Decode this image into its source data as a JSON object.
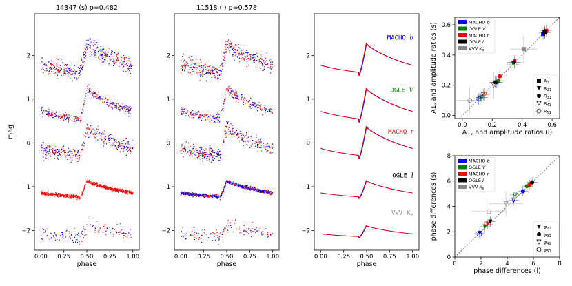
{
  "chart_data": [
    {
      "type": "scatter",
      "panel": "light curves, star 14347",
      "title": "14347 (s) p=0.482",
      "title_color": "#ff0000",
      "xlabel": "phase",
      "ylabel": "mag",
      "xlim": [
        -0.07,
        1.07
      ],
      "ylim": [
        -2.45,
        2.95
      ],
      "yaxis_inverted": false,
      "xticks": [
        "0.00",
        "0.25",
        "0.50",
        "0.75",
        "1.00"
      ],
      "yticks": [
        "2",
        "1",
        "0",
        "−1",
        "−2"
      ],
      "series_colors": [
        "#0000ff",
        "#ff0000"
      ],
      "bands_offset_mag": [
        1.85,
        0.85,
        -0.1,
        -1.05,
        -1.95
      ]
    },
    {
      "type": "scatter",
      "panel": "light curves, star 11518",
      "title": "11518 (l) p=0.578",
      "title_color": "#0000ff",
      "xlabel": "phase",
      "xlim": [
        -0.07,
        1.07
      ],
      "ylim": [
        -2.45,
        2.95
      ],
      "xticks": [
        "0.00",
        "0.25",
        "0.50",
        "0.75",
        "1.00"
      ],
      "yticks": [
        "2",
        "1",
        "0",
        "−1",
        "−2"
      ],
      "series_colors": [
        "#0000ff",
        "#ff0000"
      ]
    },
    {
      "type": "line",
      "panel": "template light curves",
      "xlabel": "phase",
      "xlim": [
        -0.07,
        1.07
      ],
      "ylim": [
        -2.45,
        2.95
      ],
      "xticks": [
        "0.00",
        "0.25",
        "0.50",
        "0.75",
        "1.00"
      ],
      "yticks": [
        "2",
        "1",
        "0",
        "−1",
        "−2"
      ],
      "series_colors": [
        "#0000ff",
        "#ff0000"
      ],
      "band_labels": [
        {
          "text": "MACHO",
          "italic": "b",
          "color": "#0000ff"
        },
        {
          "text": "OGLE",
          "italic": "V",
          "color": "#008000"
        },
        {
          "text": "MACHO",
          "italic": "r",
          "color": "#ff0000"
        },
        {
          "text": "OGLE",
          "italic": "I",
          "color": "#000000"
        },
        {
          "text": "VVV",
          "italic": "K",
          "sub": "s",
          "color": "#888888"
        }
      ]
    },
    {
      "type": "scatter",
      "panel": "amplitude ratios",
      "xlabel": "A1, and amplitude ratios (l)",
      "ylabel": "A1, and amplitude ratios (s)",
      "xlim": [
        -0.05,
        0.65
      ],
      "ylim": [
        -0.02,
        0.65
      ],
      "xticks": [
        "0.0",
        "0.2",
        "0.4",
        "0.6"
      ],
      "yticks": [
        "0.0",
        "0.2",
        "0.4",
        "0.6"
      ],
      "legend_bands": [
        {
          "label": "MACHO b",
          "color": "#0000ff"
        },
        {
          "label": "OGLE V",
          "color": "#008000"
        },
        {
          "label": "MACHO r",
          "color": "#ff0000"
        },
        {
          "label": "OGLE I",
          "color": "#000000"
        },
        {
          "label": "VVV Ks",
          "color": "#888888"
        }
      ],
      "legend_markers": [
        "A1",
        "R21",
        "R31",
        "R41",
        "R51"
      ],
      "points": [
        {
          "marker": "A1",
          "band": 0,
          "x": 0.54,
          "y": 0.54
        },
        {
          "marker": "A1",
          "band": 1,
          "x": 0.55,
          "y": 0.55
        },
        {
          "marker": "A1",
          "band": 2,
          "x": 0.56,
          "y": 0.56
        },
        {
          "marker": "A1",
          "band": 3,
          "x": 0.55,
          "y": 0.55
        },
        {
          "marker": "A1",
          "band": 4,
          "x": 0.41,
          "y": 0.44
        },
        {
          "marker": "R21",
          "band": 0,
          "x": 0.34,
          "y": 0.35
        },
        {
          "marker": "R21",
          "band": 1,
          "x": 0.34,
          "y": 0.34
        },
        {
          "marker": "R21",
          "band": 2,
          "x": 0.35,
          "y": 0.36
        },
        {
          "marker": "R21",
          "band": 3,
          "x": 0.35,
          "y": 0.35
        },
        {
          "marker": "R31",
          "band": 0,
          "x": 0.23,
          "y": 0.22
        },
        {
          "marker": "R31",
          "band": 1,
          "x": 0.24,
          "y": 0.23
        },
        {
          "marker": "R31",
          "band": 2,
          "x": 0.25,
          "y": 0.26
        },
        {
          "marker": "R31",
          "band": 3,
          "x": 0.22,
          "y": 0.22
        },
        {
          "marker": "R41",
          "band": 0,
          "x": 0.13,
          "y": 0.12
        },
        {
          "marker": "R41",
          "band": 1,
          "x": 0.14,
          "y": 0.14
        },
        {
          "marker": "R41",
          "band": 2,
          "x": 0.15,
          "y": 0.14
        },
        {
          "marker": "R41",
          "band": 4,
          "x": 0.21,
          "y": 0.2
        },
        {
          "marker": "R51",
          "band": 0,
          "x": 0.11,
          "y": 0.11
        },
        {
          "marker": "R51",
          "band": 1,
          "x": 0.12,
          "y": 0.11
        },
        {
          "marker": "R51",
          "band": 4,
          "x": 0.05,
          "y": 0.1
        }
      ]
    },
    {
      "type": "scatter",
      "panel": "phase differences",
      "xlabel": "phase differences (l)",
      "ylabel": "phase differences (s)",
      "xlim": [
        0,
        8
      ],
      "ylim": [
        0,
        8
      ],
      "xticks": [
        "0",
        "2",
        "4",
        "6",
        "8"
      ],
      "yticks": [
        "0",
        "2",
        "4",
        "6",
        "8"
      ],
      "legend_bands": [
        {
          "label": "MACHO b",
          "color": "#0000ff"
        },
        {
          "label": "OGLE V",
          "color": "#008000"
        },
        {
          "label": "MACHO r",
          "color": "#ff0000"
        },
        {
          "label": "OGLE I",
          "color": "#000000"
        },
        {
          "label": "VVV Ks",
          "color": "#888888"
        }
      ],
      "legend_markers": [
        "φ21",
        "φ31",
        "φ41",
        "φ51"
      ],
      "points": [
        {
          "marker": "phi21",
          "band": 0,
          "x": 1.9,
          "y": 1.9
        },
        {
          "marker": "phi21",
          "band": 1,
          "x": 2.3,
          "y": 2.4
        },
        {
          "marker": "phi21",
          "band": 2,
          "x": 2.5,
          "y": 2.6
        },
        {
          "marker": "phi21",
          "band": 3,
          "x": 2.7,
          "y": 2.8
        },
        {
          "marker": "phi31",
          "band": 0,
          "x": 5.2,
          "y": 5.2
        },
        {
          "marker": "phi31",
          "band": 1,
          "x": 5.5,
          "y": 5.6
        },
        {
          "marker": "phi31",
          "band": 2,
          "x": 5.7,
          "y": 5.7
        },
        {
          "marker": "phi31",
          "band": 3,
          "x": 5.9,
          "y": 5.9
        },
        {
          "marker": "phi41",
          "band": 0,
          "x": 4.5,
          "y": 4.5
        },
        {
          "marker": "phi41",
          "band": 1,
          "x": 4.6,
          "y": 4.9
        },
        {
          "marker": "phi41",
          "band": 4,
          "x": 3.9,
          "y": 4.2
        },
        {
          "marker": "phi51",
          "band": 0,
          "x": 1.9,
          "y": 1.8
        },
        {
          "marker": "phi51",
          "band": 4,
          "x": 2.6,
          "y": 3.6
        }
      ]
    }
  ]
}
